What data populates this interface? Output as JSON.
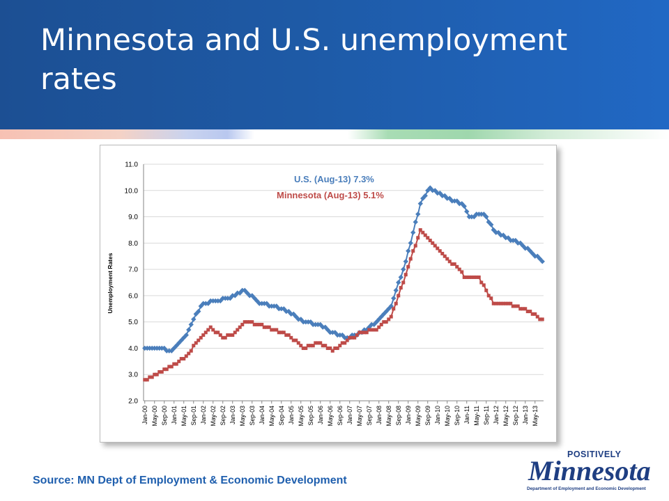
{
  "title": "Minnesota and U.S. unemployment rates",
  "source": "Source: MN Dept of Employment & Economic Development",
  "logo": {
    "top_text": "POSITIVELY",
    "wordmark": "Minnesota",
    "sub_text": "Department of Employment and Economic Development"
  },
  "colors": {
    "us": "#4a7ebb",
    "mn": "#be4b48",
    "header": "#1e5aa6",
    "source_text": "#1f5fae"
  },
  "chart_data": {
    "type": "line",
    "ylabel": "Unemployment Rates",
    "ylim": [
      2.0,
      11.0
    ],
    "yticks": [
      "2.0",
      "3.0",
      "4.0",
      "5.0",
      "6.0",
      "7.0",
      "8.0",
      "9.0",
      "10.0",
      "11.0"
    ],
    "grid": true,
    "xticks": [
      "Jan-00",
      "May-00",
      "Sep-00",
      "Jan-01",
      "May-01",
      "Sep-01",
      "Jan-02",
      "May-02",
      "Sep-02",
      "Jan-03",
      "May-03",
      "Sep-03",
      "Jan-04",
      "May-04",
      "Sep-04",
      "Jan-05",
      "May-05",
      "Sep-05",
      "Jan-06",
      "May-06",
      "Sep-06",
      "Jan-07",
      "May-07",
      "Sep-07",
      "Jan-08",
      "May-08",
      "Sep-08",
      "Jan-09",
      "May-09",
      "Sep-09",
      "Jan-10",
      "May-10",
      "Sep-10",
      "Jan-11",
      "May-11",
      "Sep-11",
      "Jan-12",
      "May-12",
      "Sep-12",
      "Jan-13",
      "May-13"
    ],
    "annotations": [
      {
        "series": "us",
        "text": "U.S. (Aug-13)  7.3%"
      },
      {
        "series": "mn",
        "text": "Minnesota (Aug-13)  5.1%"
      }
    ],
    "series": [
      {
        "key": "us",
        "start": "Jan-00",
        "end": "Aug-13",
        "anchors": [
          [
            "Jan-00",
            4.0
          ],
          [
            "Jun-00",
            4.0
          ],
          [
            "Dec-00",
            3.9
          ],
          [
            "Jun-01",
            4.5
          ],
          [
            "Oct-01",
            5.3
          ],
          [
            "Jan-02",
            5.7
          ],
          [
            "Jun-02",
            5.8
          ],
          [
            "Dec-02",
            5.9
          ],
          [
            "Jun-03",
            6.2
          ],
          [
            "Dec-03",
            5.7
          ],
          [
            "Jun-04",
            5.6
          ],
          [
            "Dec-04",
            5.4
          ],
          [
            "Jun-05",
            5.0
          ],
          [
            "Dec-05",
            4.9
          ],
          [
            "Jun-06",
            4.6
          ],
          [
            "Dec-06",
            4.4
          ],
          [
            "Jun-07",
            4.6
          ],
          [
            "Dec-07",
            5.0
          ],
          [
            "Jun-08",
            5.6
          ],
          [
            "Dec-08",
            7.3
          ],
          [
            "Jun-09",
            9.5
          ],
          [
            "Oct-09",
            10.1
          ],
          [
            "Mar-10",
            9.8
          ],
          [
            "Aug-10",
            9.6
          ],
          [
            "Dec-10",
            9.4
          ],
          [
            "Feb-11",
            9.0
          ],
          [
            "Aug-11",
            9.1
          ],
          [
            "Dec-11",
            8.5
          ],
          [
            "May-12",
            8.2
          ],
          [
            "Aug-12",
            8.1
          ],
          [
            "Dec-12",
            7.9
          ],
          [
            "Apr-13",
            7.6
          ],
          [
            "Jul-13",
            7.4
          ],
          [
            "Aug-13",
            7.3
          ]
        ]
      },
      {
        "key": "mn",
        "start": "Jan-00",
        "end": "Aug-13",
        "anchors": [
          [
            "Jan-00",
            2.8
          ],
          [
            "Jun-00",
            3.0
          ],
          [
            "Dec-00",
            3.3
          ],
          [
            "Jun-01",
            3.7
          ],
          [
            "Dec-01",
            4.4
          ],
          [
            "Apr-02",
            4.8
          ],
          [
            "Sep-02",
            4.4
          ],
          [
            "Jan-03",
            4.5
          ],
          [
            "Jun-03",
            5.0
          ],
          [
            "Dec-03",
            4.9
          ],
          [
            "Jun-04",
            4.7
          ],
          [
            "Dec-04",
            4.5
          ],
          [
            "Jun-05",
            4.0
          ],
          [
            "Dec-05",
            4.2
          ],
          [
            "Jun-06",
            3.9
          ],
          [
            "Dec-06",
            4.3
          ],
          [
            "Jun-07",
            4.6
          ],
          [
            "Dec-07",
            4.7
          ],
          [
            "Jun-08",
            5.2
          ],
          [
            "Dec-08",
            6.8
          ],
          [
            "Jun-09",
            8.5
          ],
          [
            "Dec-09",
            7.9
          ],
          [
            "Jun-10",
            7.3
          ],
          [
            "Oct-10",
            7.0
          ],
          [
            "Dec-10",
            6.7
          ],
          [
            "Jun-11",
            6.7
          ],
          [
            "Sep-11",
            6.2
          ],
          [
            "Dec-11",
            5.7
          ],
          [
            "Jun-12",
            5.7
          ],
          [
            "Dec-12",
            5.5
          ],
          [
            "Apr-13",
            5.3
          ],
          [
            "Aug-13",
            5.1
          ]
        ]
      }
    ]
  }
}
